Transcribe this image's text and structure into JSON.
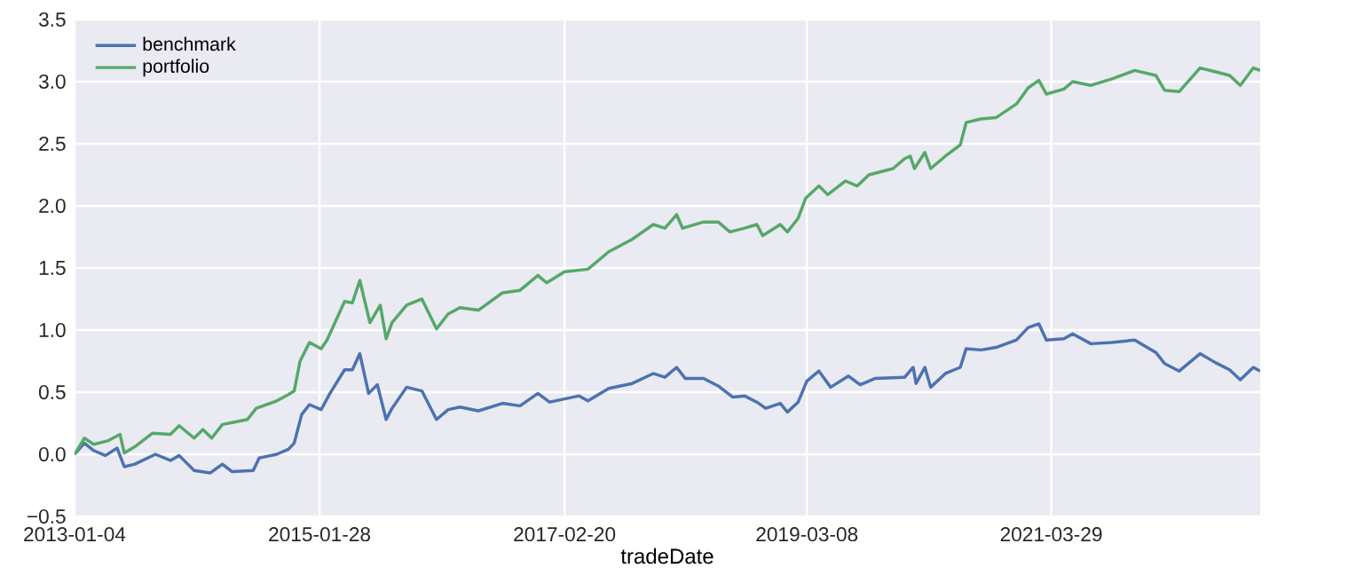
{
  "chart_data": {
    "type": "line",
    "xlabel": "tradeDate",
    "xlim": [
      "2013-01-04",
      "2023-01-01"
    ],
    "ylim": [
      -0.5,
      3.5
    ],
    "xticks": [
      {
        "value": "2013-01-04",
        "label": "2013-01-04"
      },
      {
        "value": "2015-01-28",
        "label": "2015-01-28"
      },
      {
        "value": "2017-02-20",
        "label": "2017-02-20"
      },
      {
        "value": "2019-03-08",
        "label": "2019-03-08"
      },
      {
        "value": "2021-03-29",
        "label": "2021-03-29"
      }
    ],
    "yticks": [
      {
        "value": -0.5,
        "label": "−0.5"
      },
      {
        "value": 0,
        "label": "0.0"
      },
      {
        "value": 0.5,
        "label": "0.5"
      },
      {
        "value": 1,
        "label": "1.0"
      },
      {
        "value": 1.5,
        "label": "1.5"
      },
      {
        "value": 2,
        "label": "2.0"
      },
      {
        "value": 2.5,
        "label": "2.5"
      },
      {
        "value": 3,
        "label": "3.0"
      },
      {
        "value": 3.5,
        "label": "3.5"
      }
    ],
    "grid": true,
    "legend": "top left",
    "line_style": "solid",
    "marker": "none",
    "series": [
      {
        "name": "benchmark",
        "color": "#4c72b0",
        "x": [
          "2013-01-04",
          "2013-02-03",
          "2013-03-04",
          "2013-04-09",
          "2013-05-15",
          "2013-06-06",
          "2013-07-08",
          "2013-09-10",
          "2013-10-26",
          "2013-11-22",
          "2014-01-07",
          "2014-02-26",
          "2014-04-04",
          "2014-05-04",
          "2014-07-08",
          "2014-07-26",
          "2014-09-18",
          "2014-10-24",
          "2014-11-11",
          "2014-12-04",
          "2014-12-28",
          "2015-02-02",
          "2015-03-01",
          "2015-04-15",
          "2015-05-09",
          "2015-06-01",
          "2015-06-28",
          "2015-07-25",
          "2015-08-21",
          "2015-09-08",
          "2015-10-23",
          "2015-12-09",
          "2016-01-23",
          "2016-02-28",
          "2016-04-04",
          "2016-05-31",
          "2016-08-13",
          "2016-10-06",
          "2016-11-30",
          "2017-01-05",
          "2017-04-06",
          "2017-05-03",
          "2017-07-06",
          "2017-09-16",
          "2017-11-20",
          "2017-12-26",
          "2018-01-31",
          "2018-02-27",
          "2018-04-24",
          "2018-06-08",
          "2018-07-23",
          "2018-08-28",
          "2018-10-05",
          "2018-11-01",
          "2018-12-16",
          "2019-01-07",
          "2019-02-09",
          "2019-03-08",
          "2019-04-14",
          "2019-05-20",
          "2019-07-14",
          "2019-08-19",
          "2019-10-03",
          "2020-01-03",
          "2020-01-29",
          "2020-02-07",
          "2020-03-05",
          "2020-03-23",
          "2020-05-07",
          "2020-06-22",
          "2020-07-10",
          "2020-08-25",
          "2020-10-10",
          "2020-12-12",
          "2021-01-17",
          "2021-02-19",
          "2021-03-14",
          "2021-05-07",
          "2021-06-03",
          "2021-07-29",
          "2021-09-30",
          "2021-12-11",
          "2022-02-14",
          "2022-03-13",
          "2022-04-27",
          "2022-06-30",
          "2022-08-15",
          "2022-09-29",
          "2022-11-01",
          "2022-12-11",
          "2023-01-01"
        ],
        "values": [
          0,
          0.09,
          0.03,
          -0.01,
          0.05,
          -0.1,
          -0.08,
          0.0,
          -0.05,
          -0.01,
          -0.13,
          -0.15,
          -0.08,
          -0.14,
          -0.13,
          -0.03,
          0.0,
          0.04,
          0.09,
          0.32,
          0.4,
          0.36,
          0.49,
          0.68,
          0.68,
          0.81,
          0.49,
          0.56,
          0.28,
          0.37,
          0.54,
          0.51,
          0.28,
          0.36,
          0.38,
          0.35,
          0.41,
          0.39,
          0.49,
          0.42,
          0.47,
          0.43,
          0.53,
          0.57,
          0.65,
          0.62,
          0.7,
          0.61,
          0.61,
          0.55,
          0.46,
          0.47,
          0.42,
          0.37,
          0.41,
          0.34,
          0.42,
          0.59,
          0.67,
          0.54,
          0.63,
          0.56,
          0.61,
          0.62,
          0.7,
          0.57,
          0.7,
          0.54,
          0.65,
          0.7,
          0.85,
          0.84,
          0.86,
          0.92,
          1.02,
          1.05,
          0.92,
          0.93,
          0.97,
          0.89,
          0.9,
          0.92,
          0.82,
          0.73,
          0.67,
          0.81,
          0.74,
          0.68,
          0.6,
          0.7,
          0.67
        ]
      },
      {
        "name": "portfolio",
        "color": "#55a868",
        "x": [
          "2013-01-04",
          "2013-02-03",
          "2013-03-04",
          "2013-04-18",
          "2013-05-24",
          "2013-06-06",
          "2013-07-08",
          "2013-09-01",
          "2013-10-26",
          "2013-11-22",
          "2014-01-07",
          "2014-02-03",
          "2014-03-02",
          "2014-04-04",
          "2014-06-20",
          "2014-07-17",
          "2014-09-18",
          "2014-10-24",
          "2014-11-11",
          "2014-11-29",
          "2014-12-28",
          "2015-02-02",
          "2015-02-20",
          "2015-04-15",
          "2015-05-09",
          "2015-06-01",
          "2015-07-02",
          "2015-08-03",
          "2015-08-21",
          "2015-09-08",
          "2015-10-23",
          "2015-12-09",
          "2016-01-23",
          "2016-02-28",
          "2016-04-04",
          "2016-05-31",
          "2016-08-13",
          "2016-10-06",
          "2016-11-30",
          "2016-12-27",
          "2017-02-20",
          "2017-05-03",
          "2017-07-06",
          "2017-09-16",
          "2017-11-20",
          "2017-12-26",
          "2018-01-31",
          "2018-02-18",
          "2018-04-24",
          "2018-06-08",
          "2018-07-14",
          "2018-08-28",
          "2018-10-05",
          "2018-10-23",
          "2018-12-16",
          "2019-01-07",
          "2019-02-09",
          "2019-03-04",
          "2019-04-14",
          "2019-05-11",
          "2019-07-05",
          "2019-08-10",
          "2019-09-15",
          "2019-11-28",
          "2020-01-03",
          "2020-01-20",
          "2020-02-02",
          "2020-03-05",
          "2020-03-23",
          "2020-05-07",
          "2020-06-22",
          "2020-07-10",
          "2020-08-25",
          "2020-10-10",
          "2020-12-12",
          "2021-01-17",
          "2021-02-19",
          "2021-03-14",
          "2021-05-07",
          "2021-06-03",
          "2021-07-29",
          "2021-09-30",
          "2021-12-11",
          "2022-02-14",
          "2022-03-13",
          "2022-04-27",
          "2022-06-30",
          "2022-08-15",
          "2022-09-29",
          "2022-11-01",
          "2022-12-11",
          "2023-01-01"
        ],
        "values": [
          0,
          0.13,
          0.08,
          0.11,
          0.16,
          0.01,
          0.06,
          0.17,
          0.16,
          0.23,
          0.13,
          0.2,
          0.13,
          0.24,
          0.28,
          0.37,
          0.43,
          0.48,
          0.51,
          0.75,
          0.9,
          0.85,
          0.92,
          1.23,
          1.22,
          1.4,
          1.06,
          1.2,
          0.93,
          1.06,
          1.2,
          1.25,
          1.01,
          1.13,
          1.18,
          1.16,
          1.3,
          1.32,
          1.44,
          1.38,
          1.47,
          1.49,
          1.63,
          1.73,
          1.85,
          1.82,
          1.93,
          1.82,
          1.87,
          1.87,
          1.79,
          1.82,
          1.85,
          1.76,
          1.85,
          1.79,
          1.9,
          2.06,
          2.16,
          2.09,
          2.2,
          2.16,
          2.25,
          2.3,
          2.38,
          2.4,
          2.3,
          2.43,
          2.3,
          2.4,
          2.49,
          2.67,
          2.7,
          2.71,
          2.82,
          2.95,
          3.01,
          2.9,
          2.94,
          3.0,
          2.97,
          3.02,
          3.09,
          3.05,
          2.93,
          2.92,
          3.11,
          3.08,
          3.05,
          2.97,
          3.11,
          3.09
        ]
      }
    ]
  }
}
